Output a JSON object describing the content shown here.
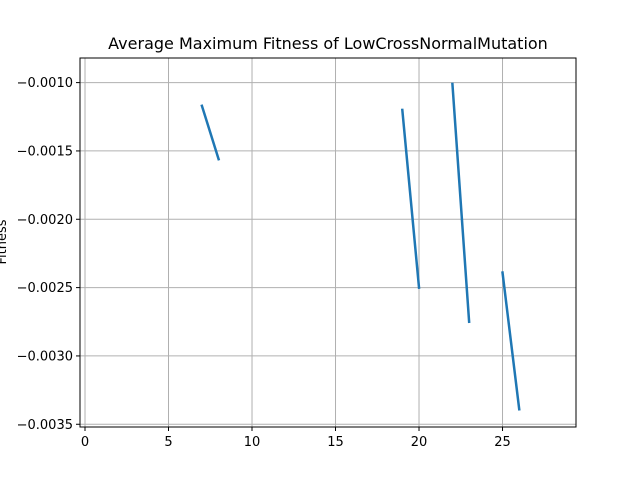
{
  "chart_data": {
    "type": "line",
    "title": "Average Maximum Fitness of LowCrossNormalMutation",
    "xlabel": "",
    "ylabel": "Fitness",
    "xlim": [
      -0.3,
      29.4
    ],
    "ylim": [
      -0.00352,
      -0.00082
    ],
    "xticks": [
      0,
      5,
      10,
      15,
      20,
      25
    ],
    "xtick_labels": [
      "0",
      "5",
      "10",
      "15",
      "20",
      "25"
    ],
    "yticks": [
      -0.001,
      -0.0015,
      -0.002,
      -0.0025,
      -0.003,
      -0.0035
    ],
    "ytick_labels": [
      "−0.0010",
      "−0.0015",
      "−0.0020",
      "−0.0025",
      "−0.0030",
      "−0.0035"
    ],
    "grid": true,
    "line_color": "#1f77b4",
    "grid_color": "#b0b0b0",
    "segments": [
      {
        "x": [
          7,
          8
        ],
        "y": [
          -0.00117,
          -0.00156
        ]
      },
      {
        "x": [
          19,
          20
        ],
        "y": [
          -0.0012,
          -0.0025
        ]
      },
      {
        "x": [
          22,
          23
        ],
        "y": [
          -0.00101,
          -0.00275
        ]
      },
      {
        "x": [
          25,
          26
        ],
        "y": [
          -0.00239,
          -0.00339
        ]
      }
    ]
  }
}
